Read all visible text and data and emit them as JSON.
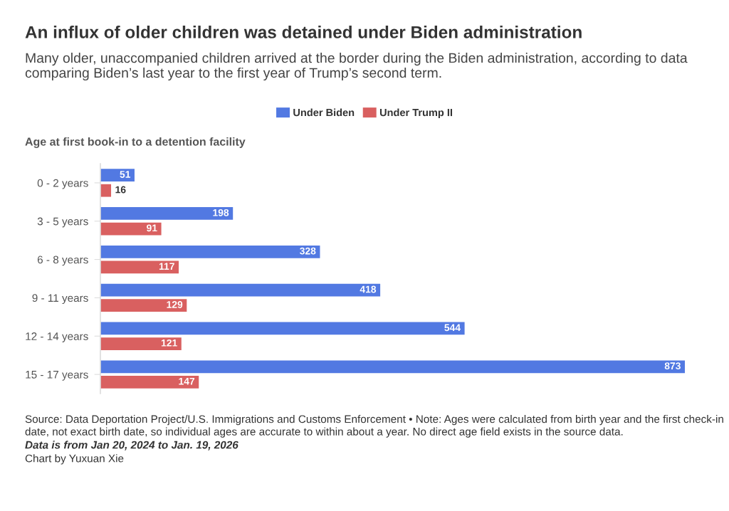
{
  "chart_data": {
    "type": "bar",
    "orientation": "horizontal",
    "title": "An influx of older children was detained under Biden administration",
    "subtitle": "Many older, unaccompanied children arrived at the border during the Biden administration, according to data comparing Biden’s last year to the first year of Trump’s second term.",
    "ylabel": "Age at first book-in to a detention facility",
    "categories": [
      "0 - 2 years",
      "3 - 5 years",
      "6 - 8 years",
      "9 - 11 years",
      "12 - 14 years",
      "15 - 17 years"
    ],
    "series": [
      {
        "name": "Under Biden",
        "color": "#5279e2",
        "values": [
          51,
          198,
          328,
          418,
          544,
          873
        ]
      },
      {
        "name": "Under Trump II",
        "color": "#d96060",
        "values": [
          16,
          91,
          117,
          129,
          121,
          147
        ]
      }
    ],
    "data_labels": true,
    "legend": "top",
    "tick_labels": "y",
    "annotations": [
      "Source: Data Deportation Project/U.S. Immigrations and Customs Enforcement • Note: Ages were calculated from birth year and the first check-in date, not exact birth date, so individual ages are accurate to within about a year. No direct age field exists in the source data.",
      "Data is from Jan 20, 2024 to Jan. 19, 2026",
      "Chart by Yuxuan Xie"
    ]
  }
}
